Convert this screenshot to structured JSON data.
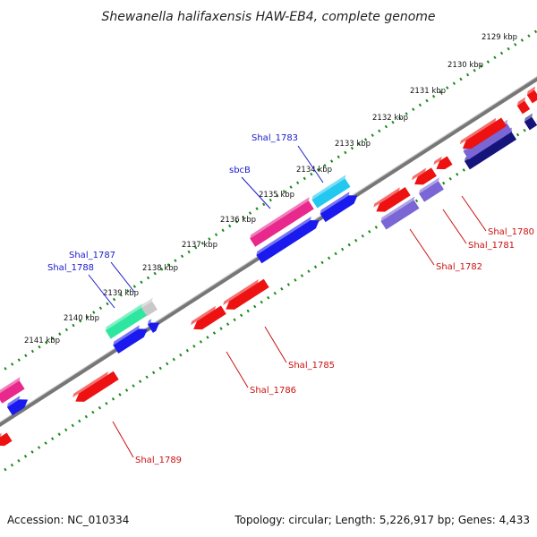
{
  "title": "Shewanella halifaxensis HAW-EB4, complete genome",
  "footer": {
    "accession": "Accession: NC_010334",
    "summary": "Topology: circular; Length: 5,226,917 bp; Genes: 4,433"
  },
  "ticks": [
    "2129 kbp",
    "2130 kbp",
    "2131 kbp",
    "2132 kbp",
    "2133 kbp",
    "2134 kbp",
    "2135 kbp",
    "2136 kbp",
    "2137 kbp",
    "2138 kbp",
    "2139 kbp",
    "2140 kbp",
    "2141 kbp"
  ],
  "gene_labels_top": [
    "Shal_1783",
    "sbcB",
    "Shal_1787",
    "Shal_1788"
  ],
  "gene_labels_bottom": [
    "Shal_1780",
    "Shal_1781",
    "Shal_1782",
    "Shal_1785",
    "Shal_1786",
    "Shal_1789"
  ],
  "colors": {
    "backbone": "#808080",
    "tick_dot": "#1a8a1a",
    "forward_red": "#ee1111",
    "blue": "#1a1aee",
    "navy": "#14147a",
    "pink": "#e8288c",
    "cyan": "#22c8f0",
    "green": "#2ee6a0",
    "gray_gene": "#c8c8c8",
    "lavender": "#7a66d4"
  }
}
